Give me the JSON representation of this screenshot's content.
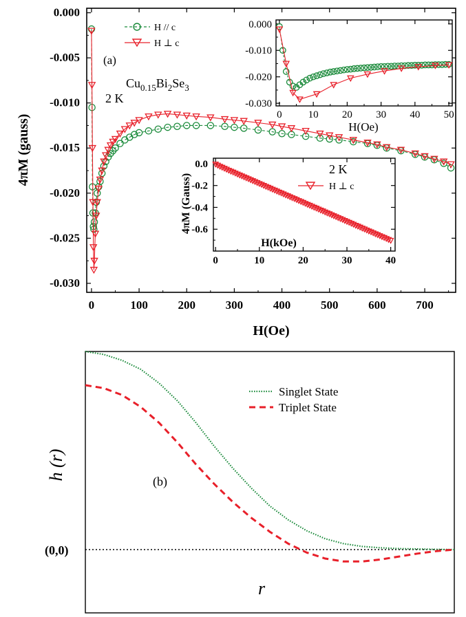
{
  "chart_data": [
    {
      "type": "scatter",
      "panel_label": "(a)",
      "sample_prefix": "Cu",
      "sample_sub1": "0.15",
      "sample_mid": "Bi",
      "sample_sub2": "2",
      "sample_mid2": "Se",
      "sample_sub3": "3",
      "temperature": "2 K",
      "xlabel": "H(Oe)",
      "ylabel": "4πM (gauss)",
      "xlim": [
        -10,
        765
      ],
      "ylim": [
        -0.031,
        0.0005
      ],
      "xticks": [
        "0",
        "100",
        "200",
        "300",
        "400",
        "500",
        "600",
        "700"
      ],
      "yticks": [
        "0.000",
        "-0.005",
        "-0.010",
        "-0.015",
        "-0.020",
        "-0.025",
        "-0.030"
      ],
      "legend_position": "top-left",
      "series": [
        {
          "name": "H // c",
          "color": "#1a8a3a",
          "marker": "circle",
          "line": "dashed",
          "x": [
            0,
            1,
            2,
            3,
            4,
            5,
            6,
            8,
            10,
            12,
            15,
            18,
            22,
            26,
            30,
            35,
            40,
            45,
            50,
            60,
            70,
            80,
            90,
            100,
            120,
            140,
            160,
            180,
            200,
            220,
            250,
            280,
            300,
            320,
            350,
            380,
            400,
            420,
            450,
            480,
            500,
            520,
            550,
            580,
            600,
            620,
            650,
            680,
            700,
            720,
            740,
            755
          ],
          "y": [
            -0.0018,
            -0.0105,
            -0.0193,
            -0.0222,
            -0.0237,
            -0.024,
            -0.0232,
            -0.0222,
            -0.021,
            -0.02,
            -0.0193,
            -0.0187,
            -0.0178,
            -0.017,
            -0.0165,
            -0.016,
            -0.0156,
            -0.0153,
            -0.015,
            -0.0145,
            -0.0141,
            -0.0138,
            -0.0135,
            -0.0133,
            -0.0131,
            -0.0129,
            -0.0127,
            -0.0126,
            -0.0125,
            -0.0125,
            -0.0125,
            -0.0126,
            -0.0127,
            -0.0128,
            -0.013,
            -0.0132,
            -0.0134,
            -0.0135,
            -0.0137,
            -0.0139,
            -0.014,
            -0.0141,
            -0.0143,
            -0.0145,
            -0.0147,
            -0.015,
            -0.0153,
            -0.0157,
            -0.016,
            -0.0163,
            -0.0167,
            -0.0172
          ]
        },
        {
          "name": "H ⊥ c",
          "color": "#e8202a",
          "marker": "triangle-down",
          "line": "solid",
          "x": [
            0,
            1,
            2,
            3,
            4,
            5,
            6,
            8,
            10,
            12,
            15,
            18,
            22,
            26,
            30,
            35,
            40,
            45,
            50,
            60,
            70,
            80,
            90,
            100,
            120,
            140,
            160,
            180,
            200,
            220,
            250,
            280,
            300,
            320,
            350,
            380,
            400,
            420,
            450,
            480,
            500,
            520,
            550,
            580,
            600,
            620,
            650,
            680,
            700,
            720,
            740,
            755
          ],
          "y": [
            -0.002,
            -0.008,
            -0.015,
            -0.021,
            -0.026,
            -0.0285,
            -0.0275,
            -0.0245,
            -0.0225,
            -0.021,
            -0.0195,
            -0.0185,
            -0.0175,
            -0.0165,
            -0.0158,
            -0.0152,
            -0.0147,
            -0.0143,
            -0.014,
            -0.0134,
            -0.0129,
            -0.0125,
            -0.0122,
            -0.0119,
            -0.0115,
            -0.0113,
            -0.0112,
            -0.0113,
            -0.0114,
            -0.0115,
            -0.0116,
            -0.0118,
            -0.0119,
            -0.012,
            -0.0122,
            -0.0124,
            -0.0126,
            -0.0128,
            -0.0131,
            -0.0134,
            -0.0136,
            -0.0138,
            -0.0141,
            -0.0144,
            -0.0146,
            -0.0149,
            -0.0152,
            -0.0156,
            -0.0159,
            -0.0162,
            -0.0165,
            -0.0168
          ]
        }
      ]
    },
    {
      "type": "scatter",
      "xlabel": "H(Oe)",
      "xlim": [
        -1,
        51
      ],
      "ylim": [
        -0.031,
        0.0015
      ],
      "xticks": [
        "0",
        "10",
        "20",
        "30",
        "40",
        "50"
      ],
      "yticks": [
        "0.000",
        "-0.010",
        "-0.020",
        "-0.030"
      ],
      "series": [
        {
          "name": "H // c",
          "color": "#1a8a3a",
          "marker": "circle",
          "x": [
            0,
            1,
            2,
            3,
            4,
            5,
            6,
            7,
            8,
            9,
            10,
            11,
            12,
            13,
            14,
            15,
            16,
            17,
            18,
            19,
            20,
            21,
            22,
            23,
            24,
            25,
            26,
            27,
            28,
            29,
            30,
            31,
            32,
            33,
            34,
            35,
            36,
            37,
            38,
            39,
            40,
            41,
            42,
            43,
            44,
            45,
            46,
            47,
            48,
            49,
            50
          ],
          "y": [
            -0.001,
            -0.01,
            -0.018,
            -0.022,
            -0.0235,
            -0.024,
            -0.023,
            -0.022,
            -0.0212,
            -0.0205,
            -0.02,
            -0.0196,
            -0.0192,
            -0.0188,
            -0.0185,
            -0.0182,
            -0.018,
            -0.0178,
            -0.0176,
            -0.0174,
            -0.0172,
            -0.0171,
            -0.0169,
            -0.0168,
            -0.0167,
            -0.0166,
            -0.0165,
            -0.0164,
            -0.0163,
            -0.0162,
            -0.0161,
            -0.0161,
            -0.016,
            -0.016,
            -0.0159,
            -0.0159,
            -0.0158,
            -0.0158,
            -0.0157,
            -0.0157,
            -0.0156,
            -0.0156,
            -0.0156,
            -0.0155,
            -0.0155,
            -0.0155,
            -0.0154,
            -0.0154,
            -0.0154,
            -0.0153,
            -0.0153
          ]
        },
        {
          "name": "H ⊥ c",
          "color": "#e8202a",
          "marker": "triangle-down",
          "x": [
            0,
            2,
            4,
            6,
            11,
            16,
            21,
            26,
            31,
            36,
            41,
            46,
            50
          ],
          "y": [
            -0.002,
            -0.015,
            -0.026,
            -0.0285,
            -0.0265,
            -0.023,
            -0.0205,
            -0.019,
            -0.0178,
            -0.0168,
            -0.0162,
            -0.0157,
            -0.0155
          ]
        }
      ]
    },
    {
      "type": "scatter",
      "temperature": "2 K",
      "xlabel": "H(kOe)",
      "ylabel": "4πM (Gauss)",
      "xlim": [
        -0.5,
        41
      ],
      "ylim": [
        -0.8,
        0.05
      ],
      "xticks": [
        "0",
        "10",
        "20",
        "30",
        "40"
      ],
      "yticks": [
        "0.0",
        "-0.2",
        "-0.4",
        "-0.6"
      ],
      "series": [
        {
          "name": "H ⊥ c",
          "color": "#e8202a",
          "marker": "triangle-down",
          "x": [
            0,
            0.5,
            1,
            1.5,
            2,
            2.5,
            3,
            3.5,
            4,
            4.5,
            5,
            5.5,
            6,
            6.5,
            7,
            7.5,
            8,
            8.5,
            9,
            9.5,
            10,
            10.5,
            11,
            11.5,
            12,
            12.5,
            13,
            13.5,
            14,
            14.5,
            15,
            15.5,
            16,
            16.5,
            17,
            17.5,
            18,
            18.5,
            19,
            19.5,
            20,
            20.5,
            21,
            21.5,
            22,
            22.5,
            23,
            23.5,
            24,
            24.5,
            25,
            25.5,
            26,
            26.5,
            27,
            27.5,
            28,
            28.5,
            29,
            29.5,
            30,
            30.5,
            31,
            31.5,
            32,
            32.5,
            33,
            33.5,
            34,
            34.5,
            35,
            35.5,
            36,
            36.5,
            37,
            37.5,
            38,
            38.5,
            39,
            39.5,
            40
          ],
          "y": [
            -0.005,
            -0.015,
            -0.025,
            -0.034,
            -0.043,
            -0.052,
            -0.061,
            -0.07,
            -0.078,
            -0.087,
            -0.096,
            -0.105,
            -0.113,
            -0.122,
            -0.131,
            -0.139,
            -0.148,
            -0.157,
            -0.165,
            -0.174,
            -0.183,
            -0.191,
            -0.2,
            -0.209,
            -0.217,
            -0.226,
            -0.235,
            -0.243,
            -0.252,
            -0.261,
            -0.269,
            -0.278,
            -0.287,
            -0.295,
            -0.304,
            -0.313,
            -0.321,
            -0.33,
            -0.339,
            -0.347,
            -0.356,
            -0.365,
            -0.374,
            -0.382,
            -0.391,
            -0.4,
            -0.408,
            -0.417,
            -0.426,
            -0.434,
            -0.443,
            -0.452,
            -0.46,
            -0.469,
            -0.478,
            -0.486,
            -0.495,
            -0.504,
            -0.512,
            -0.521,
            -0.53,
            -0.538,
            -0.547,
            -0.556,
            -0.565,
            -0.573,
            -0.582,
            -0.591,
            -0.599,
            -0.608,
            -0.617,
            -0.625,
            -0.634,
            -0.643,
            -0.651,
            -0.66,
            -0.669,
            -0.677,
            -0.686,
            -0.695,
            -0.703
          ]
        }
      ]
    },
    {
      "type": "line",
      "panel_label": "(b)",
      "xlabel": "r",
      "ylabel": "h (r)",
      "origin_label": "(0,0)",
      "x": [
        0,
        0.05,
        0.1,
        0.15,
        0.2,
        0.25,
        0.3,
        0.35,
        0.4,
        0.45,
        0.5,
        0.55,
        0.6,
        0.65,
        0.7,
        0.75,
        0.8,
        0.85,
        0.9,
        0.95,
        1.0
      ],
      "legend_position": "top-right",
      "series": [
        {
          "name": "Singlet State",
          "color": "#1a8a3a",
          "line": "dotted",
          "y": [
            1.0,
            0.985,
            0.955,
            0.91,
            0.84,
            0.75,
            0.64,
            0.52,
            0.41,
            0.31,
            0.22,
            0.15,
            0.095,
            0.055,
            0.03,
            0.016,
            0.009,
            0.005,
            0.003,
            0.001,
            0.0
          ]
        },
        {
          "name": "Triplet State",
          "color": "#e8202a",
          "line": "dashed",
          "y": [
            0.83,
            0.815,
            0.78,
            0.72,
            0.64,
            0.54,
            0.43,
            0.33,
            0.24,
            0.16,
            0.09,
            0.03,
            -0.015,
            -0.045,
            -0.06,
            -0.06,
            -0.05,
            -0.035,
            -0.02,
            -0.008,
            0.0
          ]
        }
      ]
    }
  ]
}
